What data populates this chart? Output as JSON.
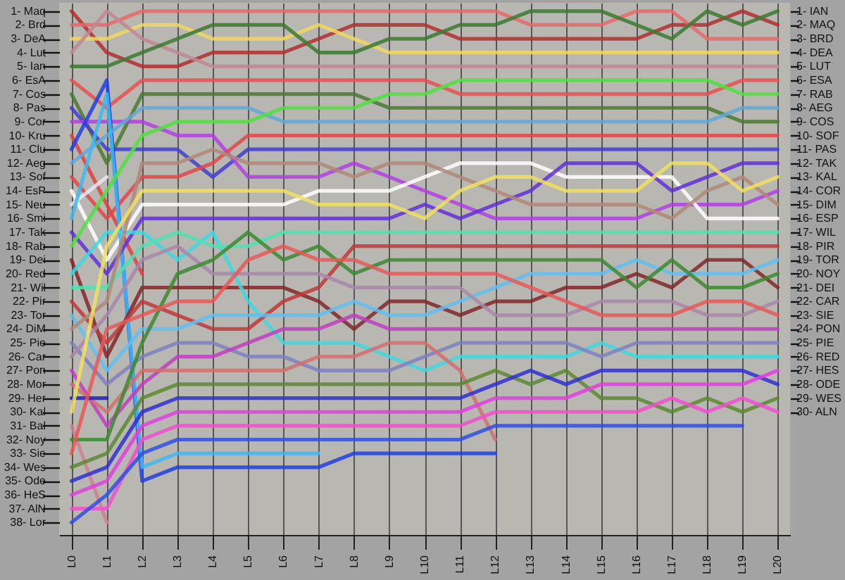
{
  "chart_data": {
    "type": "line",
    "categories": [
      "L0",
      "L1",
      "L2",
      "L3",
      "L4",
      "L5",
      "L6",
      "L7",
      "L8",
      "L9",
      "L10",
      "L11",
      "L12",
      "L13",
      "L14",
      "L15",
      "L16",
      "L17",
      "L18",
      "L19",
      "L20"
    ],
    "ylim": [
      38.9,
      0.4
    ],
    "yticks": [
      {
        "value": 1,
        "label": "1- Maq"
      },
      {
        "value": 2,
        "label": "2- Brd"
      },
      {
        "value": 3,
        "label": "3- DeA"
      },
      {
        "value": 4,
        "label": "4- Lut"
      },
      {
        "value": 5,
        "label": "5- Ian"
      },
      {
        "value": 6,
        "label": "6- EsA"
      },
      {
        "value": 7,
        "label": "7- Cos"
      },
      {
        "value": 8,
        "label": "8- Pas"
      },
      {
        "value": 9,
        "label": "9- Cor"
      },
      {
        "value": 10,
        "label": "10- Kru"
      },
      {
        "value": 11,
        "label": "11- Clu"
      },
      {
        "value": 12,
        "label": "12- Aeg"
      },
      {
        "value": 13,
        "label": "13- Sof"
      },
      {
        "value": 14,
        "label": "14- EsP"
      },
      {
        "value": 15,
        "label": "15- Neu"
      },
      {
        "value": 16,
        "label": "16- Smi"
      },
      {
        "value": 17,
        "label": "17- Tak"
      },
      {
        "value": 18,
        "label": "18- Rab"
      },
      {
        "value": 19,
        "label": "19- Dei"
      },
      {
        "value": 20,
        "label": "20- Red"
      },
      {
        "value": 21,
        "label": "21- Wil"
      },
      {
        "value": 22,
        "label": "22- Pir"
      },
      {
        "value": 23,
        "label": "23- Tor"
      },
      {
        "value": 24,
        "label": "24- DiM"
      },
      {
        "value": 25,
        "label": "25- Pie"
      },
      {
        "value": 26,
        "label": "26- Car"
      },
      {
        "value": 27,
        "label": "27- Pon"
      },
      {
        "value": 28,
        "label": "28- Mor"
      },
      {
        "value": 29,
        "label": "29- Her"
      },
      {
        "value": 30,
        "label": "30- Kal"
      },
      {
        "value": 31,
        "label": "31- Bal"
      },
      {
        "value": 32,
        "label": "32- Noy"
      },
      {
        "value": 33,
        "label": "33- Sie"
      },
      {
        "value": 34,
        "label": "34- Wes"
      },
      {
        "value": 35,
        "label": "35- Ode"
      },
      {
        "value": 36,
        "label": "36- HeS"
      },
      {
        "value": 37,
        "label": "37- AlN"
      },
      {
        "value": 38,
        "label": "38- Lor"
      }
    ],
    "y2lim": [
      38.9,
      0.4
    ],
    "y2ticks": [
      {
        "value": 1,
        "label": "1- IAN"
      },
      {
        "value": 2,
        "label": "2- MAQ"
      },
      {
        "value": 3,
        "label": "3- BRD"
      },
      {
        "value": 4,
        "label": "4- DEA"
      },
      {
        "value": 5,
        "label": "5- LUT"
      },
      {
        "value": 6,
        "label": "6- ESA"
      },
      {
        "value": 7,
        "label": "7- RAB"
      },
      {
        "value": 8,
        "label": "8- AEG"
      },
      {
        "value": 9,
        "label": "9- COS"
      },
      {
        "value": 10,
        "label": "10- SOF"
      },
      {
        "value": 11,
        "label": "11- PAS"
      },
      {
        "value": 12,
        "label": "12- TAK"
      },
      {
        "value": 13,
        "label": "13- KAL"
      },
      {
        "value": 14,
        "label": "14- COR"
      },
      {
        "value": 15,
        "label": "15- DIM"
      },
      {
        "value": 16,
        "label": "16- ESP"
      },
      {
        "value": 17,
        "label": "17- WIL"
      },
      {
        "value": 18,
        "label": "18- PIR"
      },
      {
        "value": 19,
        "label": "19- TOR"
      },
      {
        "value": 20,
        "label": "20- NOY"
      },
      {
        "value": 21,
        "label": "21- DEI"
      },
      {
        "value": 22,
        "label": "22- CAR"
      },
      {
        "value": 23,
        "label": "23- SIE"
      },
      {
        "value": 24,
        "label": "24- PON"
      },
      {
        "value": 25,
        "label": "25- PIE"
      },
      {
        "value": 26,
        "label": "26- RED"
      },
      {
        "value": 27,
        "label": "27- HES"
      },
      {
        "value": 28,
        "label": "28- ODE"
      },
      {
        "value": 29,
        "label": "29- WES"
      },
      {
        "value": 30,
        "label": "30- ALN"
      }
    ],
    "grid": "x",
    "series": [
      {
        "color": "#b03030",
        "values": [
          1,
          4,
          5,
          5,
          4,
          4,
          4,
          3,
          2,
          2,
          2,
          3,
          3,
          3,
          3,
          3,
          3,
          2,
          2,
          1,
          2
        ]
      },
      {
        "color": "#e86868",
        "values": [
          2,
          2,
          1,
          1,
          1,
          1,
          1,
          1,
          1,
          1,
          1,
          1,
          1,
          2,
          2,
          2,
          1,
          1,
          3,
          3,
          3
        ]
      },
      {
        "color": "#f0d860",
        "values": [
          3,
          3,
          2,
          2,
          3,
          3,
          3,
          2,
          3,
          4,
          4,
          4,
          4,
          4,
          4,
          4,
          4,
          4,
          4,
          4,
          4
        ]
      },
      {
        "color": "#c08890",
        "values": [
          4,
          1,
          3,
          4,
          5,
          5,
          5,
          5,
          5,
          5,
          5,
          5,
          5,
          5,
          5,
          5,
          5,
          5,
          5,
          5,
          5
        ]
      },
      {
        "color": "#3c7a30",
        "values": [
          5,
          5,
          4,
          3,
          2,
          2,
          2,
          4,
          4,
          3,
          3,
          2,
          2,
          1,
          1,
          1,
          2,
          3,
          1,
          2,
          1
        ]
      },
      {
        "color": "#e85050",
        "values": [
          6,
          8,
          6,
          6,
          6,
          6,
          6,
          6,
          6,
          6,
          6,
          7,
          7,
          7,
          7,
          7,
          7,
          7,
          7,
          6,
          6
        ]
      },
      {
        "color": "#4a7a30",
        "values": [
          7,
          12,
          7,
          7,
          7,
          7,
          7,
          7,
          7,
          8,
          8,
          8,
          8,
          8,
          8,
          8,
          8,
          8,
          8,
          9,
          9
        ]
      },
      {
        "color": "#4040d0",
        "values": [
          8,
          11,
          11,
          11,
          13,
          11,
          11,
          11,
          11,
          11,
          11,
          11,
          11,
          11,
          11,
          11,
          11,
          11,
          11,
          11,
          11
        ]
      },
      {
        "color": "#b040e0",
        "values": [
          9,
          9,
          9,
          10,
          10,
          13,
          13,
          13,
          12,
          13,
          14,
          15,
          16,
          16,
          16,
          16,
          16,
          15,
          15,
          15,
          14
        ]
      },
      {
        "color": "#e04040",
        "values": [
          10,
          15,
          20,
          null,
          null,
          null,
          null,
          null,
          null,
          null,
          null,
          null,
          null,
          null,
          null,
          null,
          null,
          null,
          null,
          null,
          null
        ]
      },
      {
        "color": "#2040e0",
        "values": [
          11,
          6,
          35,
          34,
          34,
          34,
          34,
          34,
          33,
          33,
          33,
          33,
          33,
          null,
          null,
          null,
          null,
          null,
          null,
          null,
          null
        ]
      },
      {
        "color": "#60a8d8",
        "values": [
          12,
          10,
          8,
          8,
          8,
          8,
          9,
          9,
          9,
          9,
          9,
          9,
          9,
          9,
          9,
          9,
          9,
          9,
          9,
          8,
          8
        ]
      },
      {
        "color": "#e04848",
        "values": [
          13,
          16,
          13,
          13,
          12,
          10,
          10,
          10,
          10,
          10,
          10,
          10,
          10,
          10,
          10,
          10,
          10,
          10,
          10,
          10,
          10
        ]
      },
      {
        "color": "#ffffff",
        "values": [
          14,
          19,
          15,
          15,
          15,
          15,
          15,
          14,
          14,
          14,
          13,
          12,
          12,
          12,
          13,
          13,
          13,
          13,
          16,
          16,
          16
        ]
      },
      {
        "color": "#e8e8f0",
        "values": [
          15,
          13,
          null,
          null,
          null,
          null,
          null,
          null,
          null,
          null,
          null,
          null,
          null,
          null,
          null,
          null,
          null,
          null,
          null,
          null,
          null
        ]
      },
      {
        "color": "#40b8f0",
        "values": [
          16,
          7,
          34,
          33,
          33,
          33,
          33,
          33,
          null,
          null,
          null,
          null,
          null,
          null,
          null,
          null,
          null,
          null,
          null,
          null,
          null
        ]
      },
      {
        "color": "#6030d8",
        "values": [
          17,
          20,
          16,
          16,
          16,
          16,
          16,
          16,
          16,
          16,
          15,
          16,
          15,
          14,
          12,
          12,
          12,
          14,
          13,
          12,
          12
        ]
      },
      {
        "color": "#50e040",
        "values": [
          18,
          14,
          10,
          9,
          9,
          9,
          8,
          8,
          8,
          7,
          7,
          6,
          6,
          6,
          6,
          6,
          6,
          6,
          6,
          7,
          7
        ]
      },
      {
        "color": "#802828",
        "values": [
          19,
          26,
          21,
          21,
          21,
          21,
          21,
          22,
          24,
          22,
          22,
          23,
          22,
          22,
          21,
          21,
          20,
          21,
          19,
          19,
          21
        ]
      },
      {
        "color": "#40d8e0",
        "values": [
          20,
          17,
          17,
          19,
          17,
          22,
          25,
          25,
          25,
          26,
          27,
          26,
          26,
          26,
          26,
          25,
          26,
          26,
          26,
          26,
          26
        ]
      },
      {
        "color": "#50e0b0",
        "values": [
          21,
          21,
          18,
          17,
          18,
          18,
          17,
          17,
          17,
          17,
          17,
          17,
          17,
          17,
          17,
          17,
          17,
          17,
          17,
          17,
          17
        ]
      },
      {
        "color": "#c03838",
        "values": [
          22,
          25,
          22,
          23,
          24,
          24,
          22,
          21,
          18,
          18,
          18,
          18,
          18,
          18,
          18,
          18,
          18,
          18,
          18,
          18,
          18
        ]
      },
      {
        "color": "#60c0f0",
        "values": [
          23,
          27,
          24,
          24,
          23,
          23,
          23,
          23,
          22,
          23,
          23,
          22,
          21,
          20,
          20,
          20,
          19,
          20,
          20,
          20,
          19
        ]
      },
      {
        "color": "#b08878",
        "values": [
          24,
          22,
          12,
          12,
          11,
          12,
          12,
          12,
          13,
          12,
          12,
          13,
          14,
          15,
          15,
          15,
          15,
          16,
          14,
          13,
          15
        ]
      },
      {
        "color": "#8080c0",
        "values": [
          25,
          28,
          26,
          25,
          25,
          26,
          26,
          27,
          27,
          27,
          26,
          25,
          25,
          25,
          25,
          26,
          25,
          25,
          25,
          25,
          25
        ]
      },
      {
        "color": "#a888a8",
        "values": [
          26,
          23,
          19,
          18,
          20,
          20,
          20,
          20,
          21,
          21,
          21,
          21,
          23,
          23,
          23,
          22,
          22,
          22,
          23,
          23,
          22
        ]
      },
      {
        "color": "#c040c0",
        "values": [
          27,
          31,
          28,
          26,
          26,
          25,
          24,
          24,
          23,
          24,
          24,
          24,
          24,
          24,
          24,
          24,
          24,
          24,
          24,
          24,
          24
        ]
      },
      {
        "color": "#d07070",
        "values": [
          28,
          30,
          27,
          27,
          27,
          27,
          27,
          26,
          26,
          25,
          25,
          27,
          32,
          null,
          null,
          null,
          null,
          null,
          null,
          null,
          null
        ]
      },
      {
        "color": "#2020c0",
        "values": [
          29,
          29,
          null,
          null,
          null,
          null,
          null,
          null,
          null,
          null,
          null,
          null,
          null,
          null,
          null,
          null,
          null,
          null,
          null,
          null,
          null
        ]
      },
      {
        "color": "#f0e060",
        "values": [
          30,
          18,
          14,
          14,
          14,
          14,
          14,
          15,
          15,
          15,
          16,
          14,
          13,
          13,
          14,
          14,
          14,
          12,
          12,
          14,
          13
        ]
      },
      {
        "color": "#d08090",
        "values": [
          31,
          38,
          null,
          null,
          null,
          null,
          null,
          null,
          null,
          null,
          null,
          null,
          null,
          null,
          null,
          null,
          null,
          null,
          null,
          null,
          null
        ]
      },
      {
        "color": "#3c8a30",
        "values": [
          32,
          32,
          25,
          20,
          19,
          17,
          19,
          18,
          20,
          19,
          19,
          19,
          19,
          19,
          19,
          19,
          21,
          19,
          21,
          21,
          20
        ]
      },
      {
        "color": "#e85858",
        "values": [
          33,
          24,
          23,
          22,
          22,
          19,
          18,
          19,
          19,
          20,
          20,
          20,
          20,
          21,
          22,
          23,
          23,
          23,
          22,
          22,
          23
        ]
      },
      {
        "color": "#5a8a30",
        "values": [
          34,
          33,
          29,
          28,
          28,
          28,
          28,
          28,
          28,
          28,
          28,
          28,
          27,
          28,
          27,
          29,
          29,
          30,
          29,
          30,
          29
        ]
      },
      {
        "color": "#3030d0",
        "values": [
          35,
          34,
          30,
          29,
          29,
          29,
          29,
          29,
          29,
          29,
          29,
          29,
          28,
          27,
          28,
          27,
          27,
          27,
          27,
          27,
          28
        ]
      },
      {
        "color": "#e040e0",
        "values": [
          36,
          35,
          31,
          30,
          30,
          30,
          30,
          30,
          30,
          30,
          30,
          30,
          29,
          29,
          29,
          28,
          28,
          28,
          28,
          28,
          27
        ]
      },
      {
        "color": "#f050d0",
        "values": [
          37,
          37,
          32,
          31,
          31,
          31,
          31,
          31,
          31,
          31,
          31,
          31,
          30,
          30,
          30,
          30,
          30,
          29,
          30,
          29,
          30
        ]
      },
      {
        "color": "#3050e0",
        "values": [
          38,
          36,
          33,
          32,
          32,
          32,
          32,
          32,
          32,
          32,
          32,
          32,
          31,
          31,
          31,
          31,
          31,
          31,
          31,
          31,
          null
        ]
      }
    ]
  }
}
